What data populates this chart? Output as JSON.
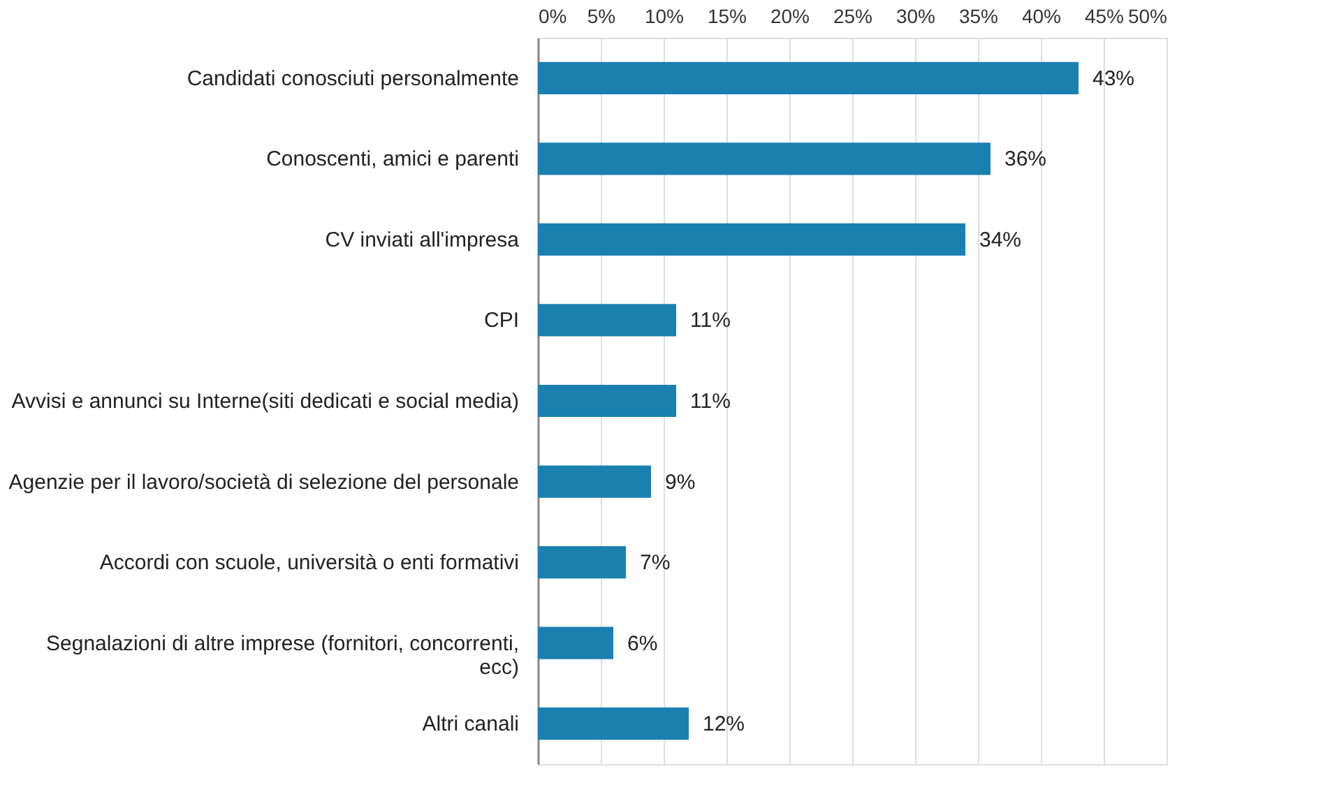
{
  "chart_data": {
    "type": "bar",
    "orientation": "horizontal",
    "categories": [
      "Candidati conosciuti personalmente",
      "Conoscenti, amici e parenti",
      "CV inviati all'impresa",
      "CPI",
      "Avvisi e annunci su Interne(siti dedicati e social media)",
      "Agenzie per il lavoro/società di selezione del personale",
      "Accordi con scuole, università o enti formativi",
      "Segnalazioni di altre imprese (fornitori, concorrenti, ecc)",
      "Altri canali"
    ],
    "values": [
      43,
      36,
      34,
      11,
      11,
      9,
      7,
      6,
      12
    ],
    "value_labels": [
      "43%",
      "36%",
      "34%",
      "11%",
      "11%",
      "9%",
      "7%",
      "6%",
      "12%"
    ],
    "color": "#1a80b0",
    "xlim": [
      0,
      50
    ],
    "xticks": [
      {
        "value": 0,
        "label": "0%"
      },
      {
        "value": 5,
        "label": "5%"
      },
      {
        "value": 10,
        "label": "10%"
      },
      {
        "value": 15,
        "label": "15%"
      },
      {
        "value": 20,
        "label": "20%"
      },
      {
        "value": 25,
        "label": "25%"
      },
      {
        "value": 30,
        "label": "30%"
      },
      {
        "value": 35,
        "label": "35%"
      },
      {
        "value": 40,
        "label": "40%"
      },
      {
        "value": 45,
        "label": "45%"
      },
      {
        "value": 50,
        "label": "50%"
      }
    ],
    "grid": "x"
  }
}
